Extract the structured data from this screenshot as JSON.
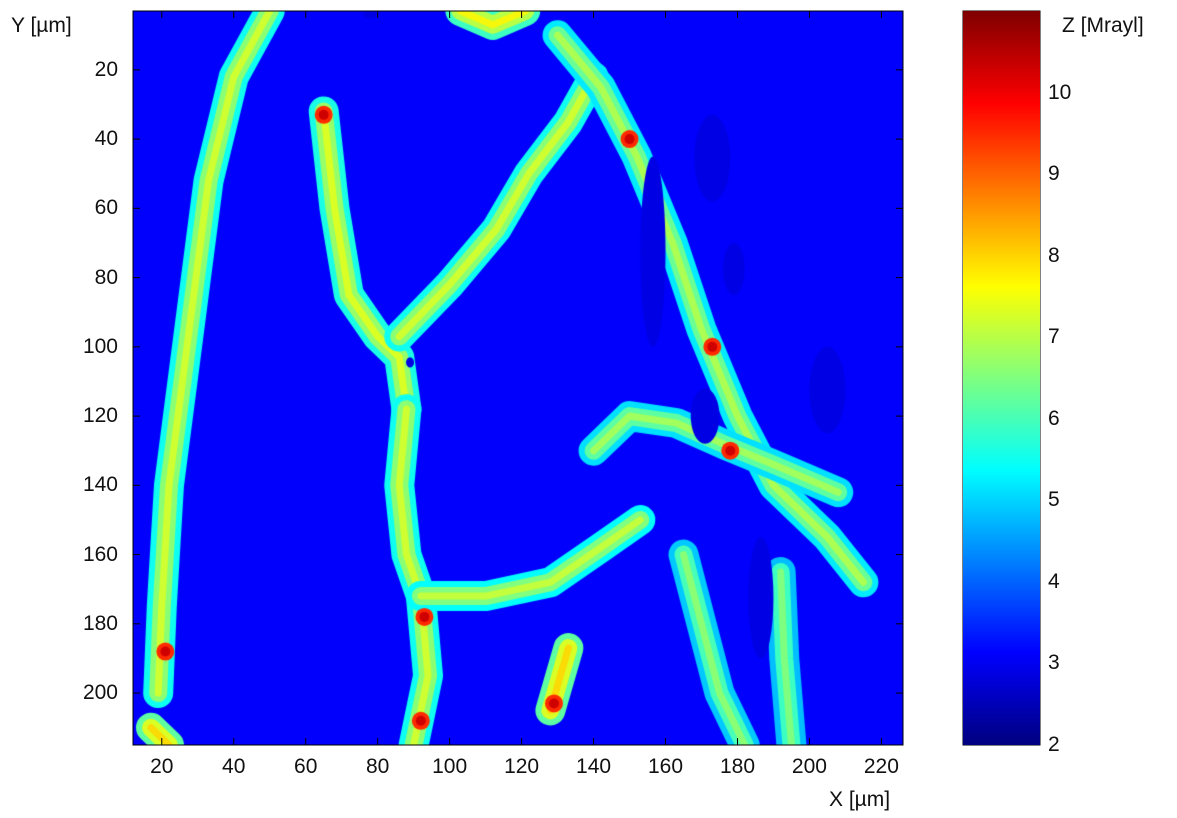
{
  "chart_data": {
    "type": "heatmap",
    "title": "",
    "xlabel": "X [µm]",
    "ylabel": "Y [µm]",
    "colorbar_label": "Z [Mrayl]",
    "colormap": "jet",
    "xlim": [
      12,
      226
    ],
    "ylim": [
      3,
      215
    ],
    "y_direction": "down",
    "clim": [
      2,
      11
    ],
    "x_ticks": [
      20,
      40,
      60,
      80,
      100,
      120,
      140,
      160,
      180,
      200,
      220
    ],
    "y_ticks": [
      20,
      40,
      60,
      80,
      100,
      120,
      140,
      160,
      180,
      200
    ],
    "colorbar_ticks": [
      2,
      3,
      4,
      5,
      6,
      7,
      8,
      9,
      10
    ],
    "background_value": 3.1,
    "structures": [
      {
        "name": "left vertical strand",
        "value": 6.6,
        "points": [
          [
            50,
            3
          ],
          [
            40,
            22
          ],
          [
            33,
            52
          ],
          [
            27,
            100
          ],
          [
            22,
            140
          ],
          [
            20,
            175
          ],
          [
            19,
            200
          ]
        ]
      },
      {
        "name": "left strand foot",
        "value": 7.3,
        "points": [
          [
            17,
            210
          ],
          [
            22,
            215
          ]
        ]
      },
      {
        "name": "upper-left branch",
        "value": 6.7,
        "points": [
          [
            65,
            32
          ],
          [
            68,
            60
          ],
          [
            72,
            85
          ],
          [
            80,
            97
          ],
          [
            86,
            103
          ],
          [
            88,
            118
          ]
        ]
      },
      {
        "name": "central diagonal",
        "value": 6.6,
        "points": [
          [
            86,
            97
          ],
          [
            100,
            82
          ],
          [
            113,
            66
          ],
          [
            122,
            50
          ],
          [
            133,
            35
          ],
          [
            140,
            22
          ]
        ]
      },
      {
        "name": "central vertical",
        "value": 6.6,
        "points": [
          [
            88,
            118
          ],
          [
            86,
            140
          ],
          [
            88,
            160
          ],
          [
            92,
            172
          ],
          [
            94,
            195
          ],
          [
            90,
            215
          ]
        ]
      },
      {
        "name": "bottom horizontal",
        "value": 6.5,
        "points": [
          [
            92,
            172
          ],
          [
            110,
            172
          ],
          [
            128,
            168
          ],
          [
            142,
            158
          ],
          [
            153,
            150
          ]
        ]
      },
      {
        "name": "upper right mass",
        "value": 6.3,
        "points": [
          [
            130,
            10
          ],
          [
            142,
            25
          ],
          [
            152,
            45
          ],
          [
            162,
            70
          ],
          [
            170,
            95
          ],
          [
            180,
            120
          ],
          [
            190,
            140
          ],
          [
            205,
            155
          ],
          [
            215,
            168
          ]
        ]
      },
      {
        "name": "right mid mass",
        "value": 6.2,
        "points": [
          [
            140,
            130
          ],
          [
            150,
            120
          ],
          [
            163,
            122
          ],
          [
            176,
            128
          ],
          [
            190,
            134
          ],
          [
            208,
            142
          ]
        ]
      },
      {
        "name": "lower right strands",
        "value": 6.0,
        "points": [
          [
            165,
            160
          ],
          [
            170,
            180
          ],
          [
            175,
            200
          ],
          [
            182,
            215
          ]
        ]
      },
      {
        "name": "far right strand",
        "value": 5.9,
        "points": [
          [
            192,
            165
          ],
          [
            193,
            190
          ],
          [
            195,
            215
          ]
        ]
      },
      {
        "name": "top blob",
        "value": 7.0,
        "points": [
          [
            103,
            3
          ],
          [
            112,
            7
          ],
          [
            121,
            3
          ]
        ]
      },
      {
        "name": "lower blob",
        "value": 7.3,
        "points": [
          [
            133,
            187
          ],
          [
            128,
            205
          ]
        ]
      }
    ],
    "hot_spots": [
      [
        65,
        33
      ],
      [
        21,
        188
      ],
      [
        92,
        208
      ],
      [
        129,
        203
      ],
      [
        150,
        40
      ],
      [
        173,
        100
      ],
      [
        178,
        130
      ],
      [
        93,
        178
      ]
    ],
    "holes": [
      [
        [
          153,
          45
        ],
        [
          160,
          100
        ]
      ],
      [
        [
          168,
          33
        ],
        [
          178,
          58
        ]
      ],
      [
        [
          176,
          70
        ],
        [
          182,
          85
        ]
      ],
      [
        [
          167,
          112
        ],
        [
          175,
          128
        ]
      ],
      [
        [
          183,
          155
        ],
        [
          190,
          190
        ]
      ],
      [
        [
          200,
          100
        ],
        [
          210,
          125
        ]
      ],
      [
        [
          88,
          103
        ],
        [
          90,
          106
        ]
      ],
      [
        [
          76,
          3
        ],
        [
          80,
          5
        ]
      ]
    ]
  }
}
